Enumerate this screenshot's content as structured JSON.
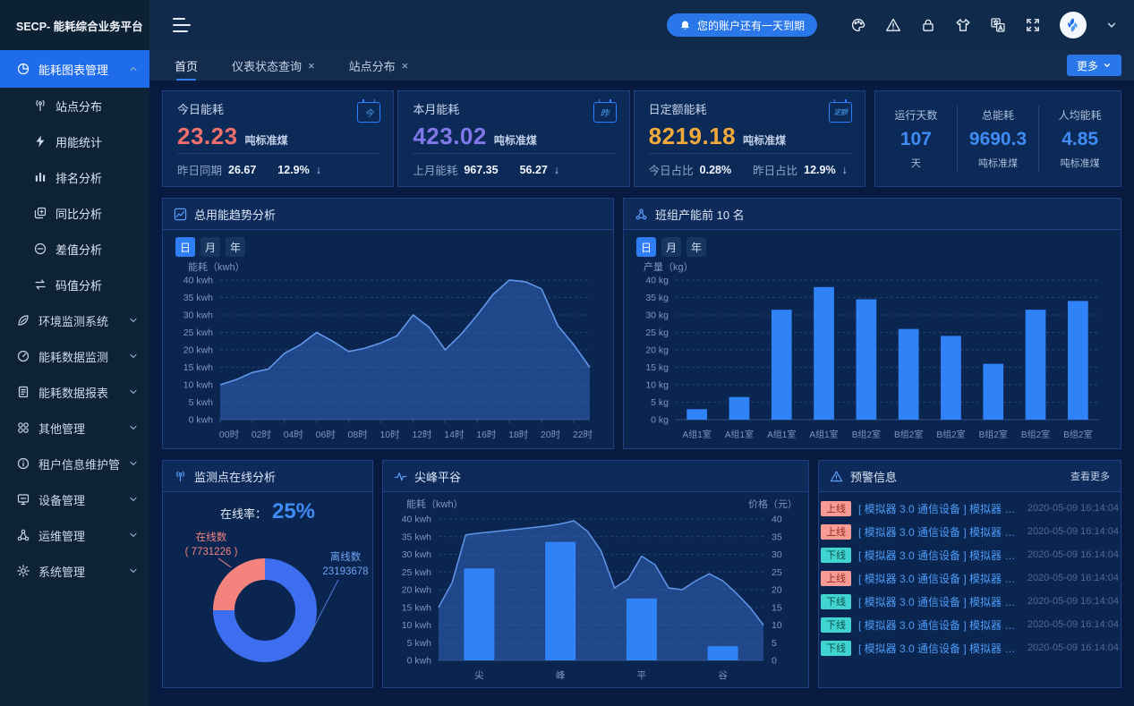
{
  "brand": {
    "logo_text": "SECP- 能耗综合业务平台"
  },
  "header": {
    "notice": "您的账户还有一天到期"
  },
  "sidebar": {
    "active_group": "能耗图表管理",
    "sub_items": [
      "站点分布",
      "用能统计",
      "排名分析",
      "同比分析",
      "差值分析",
      "码值分析"
    ],
    "groups": [
      "环境监测系统",
      "能耗数据监测",
      "能耗数据报表",
      "其他管理",
      "租户信息维护管理",
      "设备管理",
      "运维管理",
      "系统管理"
    ]
  },
  "tabs": {
    "items": [
      {
        "label": "首页"
      },
      {
        "label": "仪表状态查询"
      },
      {
        "label": "站点分布"
      }
    ],
    "more_label": "更多"
  },
  "kpi_cards": [
    {
      "title": "今日能耗",
      "value": "23.23",
      "unit": "吨标准煤",
      "icon_text": "今",
      "color": "#ee6f6b",
      "footer": [
        {
          "label": "昨日同期",
          "value": "26.67"
        },
        {
          "label": "",
          "value": "12.9%"
        }
      ],
      "arrow": "↓"
    },
    {
      "title": "本月能耗",
      "value": "423.02",
      "unit": "吨标准煤",
      "icon_text": "昨",
      "color": "#8277e9",
      "footer": [
        {
          "label": "上月能耗",
          "value": "967.35"
        },
        {
          "label": "",
          "value": "56.27"
        }
      ],
      "arrow": "↓"
    },
    {
      "title": "日定额能耗",
      "value": "8219.18",
      "unit": "吨标准煤",
      "icon_text": "定额",
      "color": "#f2a93c",
      "footer": [
        {
          "label": "今日占比",
          "value": "0.28%"
        },
        {
          "label": "昨日占比",
          "value": "12.9%"
        }
      ],
      "arrow": "↓"
    }
  ],
  "stats_card": {
    "items": [
      {
        "label": "运行天数",
        "value": "107",
        "unit": "天"
      },
      {
        "label": "总能耗",
        "value": "9690.3",
        "unit": "吨标准煤"
      },
      {
        "label": "人均能耗",
        "value": "4.85",
        "unit": "吨标准煤"
      }
    ]
  },
  "alerts": {
    "title": "预警信息",
    "more_label": "查看更多",
    "items": [
      {
        "status": "上线",
        "text": "[ 模拟器 3.0 通信设备 ] 模拟器 3.0...",
        "time": "2020-05-09 16:14:04"
      },
      {
        "status": "上线",
        "text": "[ 模拟器 3.0 通信设备 ] 模拟器 3.0...",
        "time": "2020-05-09 16:14:04"
      },
      {
        "status": "下线",
        "text": "[ 模拟器 3.0 通信设备 ] 模拟器 3.0...",
        "time": "2020-05-09 16:14:04"
      },
      {
        "status": "上线",
        "text": "[ 模拟器 3.0 通信设备 ] 模拟器 3.0...",
        "time": "2020-05-09 16:14:04"
      },
      {
        "status": "下线",
        "text": "[ 模拟器 3.0 通信设备 ] 模拟器 3.0...",
        "time": "2020-05-09 16:14:04"
      },
      {
        "status": "下线",
        "text": "[ 模拟器 3.0 通信设备 ] 模拟器 3.0...",
        "time": "2020-05-09 16:14:04"
      },
      {
        "status": "下线",
        "text": "[ 模拟器 3.0 通信设备 ] 模拟器 3.0...",
        "time": "2020-05-09 16:14:04"
      }
    ]
  },
  "colors": {
    "accent": "#2f7ef7",
    "bar": "#2f83f7",
    "line": "#6097ea",
    "area_fill": "rgba(61,120,214,0.42)",
    "grid": "#24426f",
    "axis": "#33507f",
    "tick_text": "#7e95c0",
    "online": "#f4837d",
    "offline": "#3d6ef0"
  },
  "chart_data": [
    {
      "id": "trend",
      "type": "area",
      "title": "总用能趋势分析",
      "period_tabs": [
        "日",
        "月",
        "年"
      ],
      "active_period": "日",
      "ylabel": "能耗（kwh）",
      "y_unit": "kwh",
      "ylim": [
        0,
        40
      ],
      "y_step": 5,
      "x_ticks": [
        "00时",
        "02时",
        "04时",
        "06时",
        "08时",
        "10时",
        "12时",
        "14时",
        "16时",
        "18时",
        "20时",
        "22时"
      ],
      "values": [
        10,
        11.5,
        13.5,
        14.5,
        19,
        21.5,
        25,
        22.5,
        19.5,
        20.5,
        22,
        24,
        30,
        26.5,
        20,
        24.5,
        30,
        36,
        40,
        39.5,
        37.5,
        27,
        21.5,
        15
      ]
    },
    {
      "id": "team",
      "type": "bar",
      "title": "班组产能前 10 名",
      "period_tabs": [
        "日",
        "月",
        "年"
      ],
      "active_period": "日",
      "ylabel": "产量（kg）",
      "y_unit": "kg",
      "ylim": [
        0,
        40
      ],
      "y_step": 5,
      "categories": [
        "A组1室",
        "A组1室",
        "A组1室",
        "A组1室",
        "B组2室",
        "B组2室",
        "B组2室",
        "B组2室",
        "B组2室",
        "B组2室"
      ],
      "values": [
        3,
        6.5,
        31.5,
        38,
        34.5,
        26,
        24,
        16,
        31.5,
        34
      ]
    },
    {
      "id": "online",
      "type": "pie",
      "title": "监测点在线分析",
      "online_rate_label": "在线率：",
      "online_rate": "25%",
      "label_online_1": "在线数",
      "label_online_2": "( 7731226 )",
      "label_offline_1": "离线数",
      "label_offline_2": "23193678",
      "slices": [
        {
          "name": "在线数",
          "value": 7731226,
          "color": "#f4837d"
        },
        {
          "name": "离线数",
          "value": 23193678,
          "color": "#3d6ef0"
        }
      ]
    },
    {
      "id": "peak",
      "type": "bar+area",
      "title": "尖峰平谷",
      "ylabel_left": "能耗（kwh）",
      "ylabel_right": "价格（元）",
      "y_unit": "kwh",
      "ylim": [
        0,
        40
      ],
      "y_step": 5,
      "categories": [
        "尖",
        "峰",
        "平",
        "谷"
      ],
      "bar_values": [
        26,
        33.5,
        17.5,
        4
      ],
      "line_values": [
        15,
        22,
        35.5,
        36,
        36.4,
        36.8,
        37.2,
        37.6,
        38,
        38.6,
        39.5,
        36.5,
        31,
        20.5,
        23,
        29.5,
        27,
        20.5,
        20,
        22.5,
        24.5,
        22.5,
        19,
        15,
        10
      ]
    }
  ]
}
